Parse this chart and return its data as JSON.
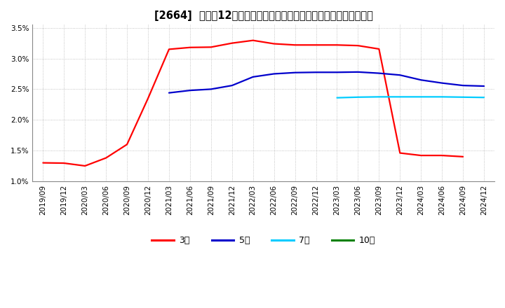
{
  "title": "[2664]  売上高12か月移動合計の対前年同期増減率の標準偏差の推移",
  "ylim": [
    0.01,
    0.0355
  ],
  "yticks": [
    0.01,
    0.015,
    0.02,
    0.025,
    0.03,
    0.035
  ],
  "ytick_labels": [
    "1.0%",
    "1.5%",
    "2.0%",
    "2.5%",
    "3.0%",
    "3.5%"
  ],
  "x_labels": [
    "2019/09",
    "2019/12",
    "2020/03",
    "2020/06",
    "2020/09",
    "2020/12",
    "2021/03",
    "2021/06",
    "2021/09",
    "2021/12",
    "2022/03",
    "2022/06",
    "2022/09",
    "2022/12",
    "2023/03",
    "2023/06",
    "2023/09",
    "2023/12",
    "2024/03",
    "2024/06",
    "2024/09",
    "2024/12"
  ],
  "series": [
    {
      "label": "3年",
      "color": "#ff0000",
      "x": [
        0,
        1,
        2,
        3,
        4,
        5,
        6,
        7,
        8,
        9,
        10,
        11,
        12,
        13,
        14,
        15,
        16,
        17,
        18,
        19,
        20
      ],
      "y": [
        0.013,
        0.01295,
        0.0125,
        0.0138,
        0.016,
        0.0235,
        0.0315,
        0.0318,
        0.03185,
        0.0325,
        0.03295,
        0.0324,
        0.0322,
        0.0322,
        0.0322,
        0.0321,
        0.03155,
        0.0146,
        0.0142,
        0.0142,
        0.014
      ]
    },
    {
      "label": "5年",
      "color": "#0000cc",
      "x": [
        6,
        7,
        8,
        9,
        10,
        11,
        12,
        13,
        14,
        15,
        16,
        17,
        18,
        19,
        20,
        21
      ],
      "y": [
        0.0244,
        0.0248,
        0.025,
        0.0256,
        0.027,
        0.0275,
        0.0277,
        0.02775,
        0.02775,
        0.0278,
        0.0276,
        0.0273,
        0.0265,
        0.026,
        0.0256,
        0.0255
      ]
    },
    {
      "label": "7年",
      "color": "#00ccff",
      "x": [
        14,
        15,
        16,
        17,
        18,
        19,
        20,
        21
      ],
      "y": [
        0.0236,
        0.0237,
        0.02375,
        0.02375,
        0.02375,
        0.02375,
        0.0237,
        0.02365
      ]
    },
    {
      "label": "10年",
      "color": "#008000",
      "x": [],
      "y": []
    }
  ],
  "fig_bg_color": "#ffffff",
  "plot_bg_color": "#ffffff",
  "grid_color": "#aaaaaa",
  "title_fontsize": 10.5,
  "tick_fontsize": 7.5,
  "legend_fontsize": 9,
  "linewidth": 1.6
}
